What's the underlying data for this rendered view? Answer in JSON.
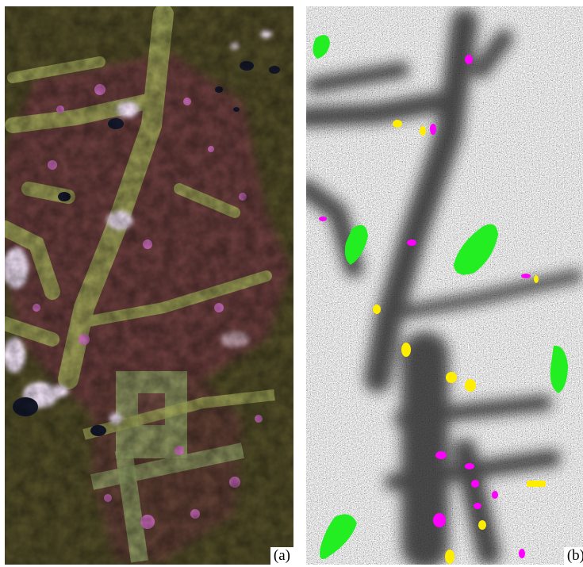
{
  "figure": {
    "panel_a": {
      "label": "(a)",
      "colors": {
        "forest": "#4e4a26",
        "degraded": "#6a3a3c",
        "clearing": "#9aa055",
        "pink": "#d46ec8",
        "cloud": "#f4e4f8",
        "shadow": "#14182a"
      }
    },
    "panel_b": {
      "label": "(b)",
      "legend_colors": {
        "green": "#22ee22",
        "magenta": "#ff00ff",
        "yellow": "#ffee00"
      }
    }
  }
}
